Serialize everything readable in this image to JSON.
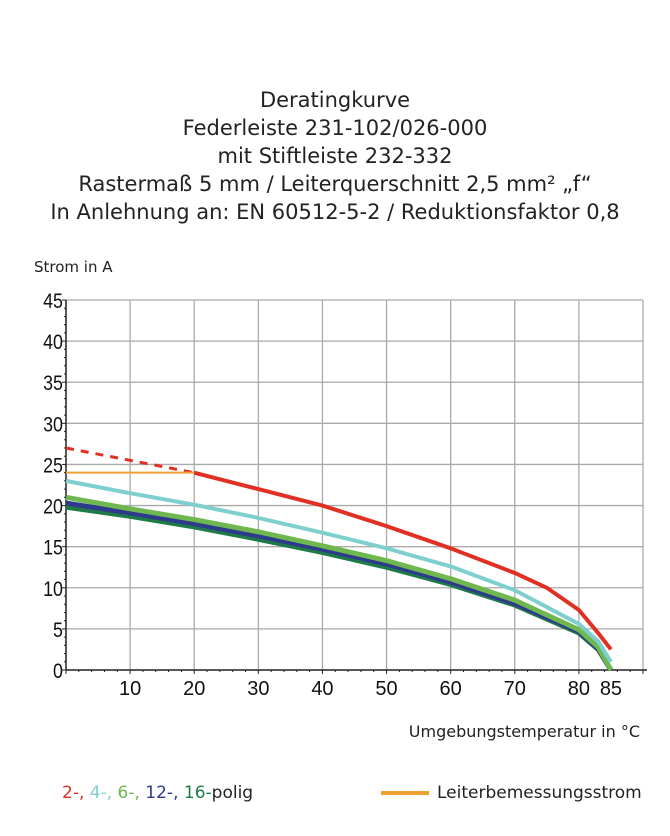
{
  "title_lines": [
    "Deratingkurve",
    "Federleiste 231-102/026-000",
    "mit Stiftleiste 232-332",
    "Rastermaß 5 mm / Leiterquerschnitt 2,5 mm² „f“",
    "In Anlehnung an: EN 60512-5-2 / Reduktionsfaktor 0,8"
  ],
  "chart_data": {
    "type": "line",
    "ylabel": "Strom in A",
    "xlabel": "Umgebungstemperatur in  °C",
    "xlim": [
      0,
      90
    ],
    "ylim": [
      0,
      45
    ],
    "xticks": [
      10,
      20,
      30,
      40,
      50,
      60,
      70,
      80,
      85
    ],
    "yticks": [
      0,
      5,
      10,
      15,
      20,
      25,
      30,
      35,
      40,
      45
    ],
    "grid": true,
    "series": [
      {
        "name": "2-",
        "color": "#e03024",
        "dashed_segment": {
          "x": [
            0,
            20
          ],
          "y": [
            27,
            24
          ]
        },
        "x": [
          20,
          30,
          40,
          50,
          60,
          70,
          75,
          80,
          83,
          85
        ],
        "y": [
          24,
          22,
          20,
          17.5,
          14.8,
          11.8,
          10,
          7.3,
          4.5,
          2.5
        ]
      },
      {
        "name": "4-",
        "color": "#7fcfcf",
        "x": [
          0,
          10,
          20,
          30,
          40,
          50,
          60,
          70,
          80,
          83,
          85
        ],
        "y": [
          23,
          21.5,
          20.1,
          18.5,
          16.7,
          14.8,
          12.6,
          9.7,
          5.6,
          3.5,
          1
        ]
      },
      {
        "name": "6-",
        "color": "#6fb850",
        "x": [
          0,
          10,
          20,
          30,
          40,
          50,
          60,
          70,
          80,
          83,
          85
        ],
        "y": [
          21,
          19.6,
          18.3,
          16.8,
          15.1,
          13.3,
          11.1,
          8.5,
          4.9,
          2.8,
          0
        ]
      },
      {
        "name": "12-",
        "color": "#2e3a8c",
        "x": [
          0,
          10,
          20,
          30,
          40,
          50,
          60,
          70,
          80,
          83,
          85
        ],
        "y": [
          20.3,
          19.1,
          17.8,
          16.3,
          14.7,
          12.9,
          10.7,
          8.1,
          4.7,
          2.6,
          0
        ]
      },
      {
        "name": "16-",
        "color": "#1e7a46",
        "x": [
          0,
          10,
          20,
          30,
          40,
          50,
          60,
          70,
          80,
          83,
          85
        ],
        "y": [
          19.8,
          18.7,
          17.4,
          15.9,
          14.3,
          12.5,
          10.4,
          7.9,
          4.5,
          2.5,
          0
        ]
      },
      {
        "name": "Leiterbemessungsstrom",
        "color": "#f0a030",
        "x": [
          0,
          20
        ],
        "y": [
          24,
          24
        ]
      }
    ],
    "legend": {
      "left_parts": [
        "2-,",
        "4-,",
        "6-,",
        "12-,",
        "16-"
      ],
      "left_suffix": "polig",
      "right": "Leiterbemessungsstrom",
      "placement": "bottom"
    }
  }
}
